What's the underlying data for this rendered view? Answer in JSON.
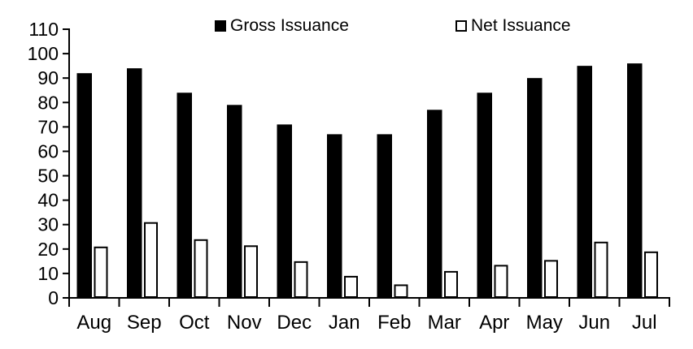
{
  "chart_data": {
    "type": "bar",
    "title": "",
    "categories": [
      "Aug",
      "Sep",
      "Oct",
      "Nov",
      "Dec",
      "Jan",
      "Feb",
      "Mar",
      "Apr",
      "May",
      "Jun",
      "Jul"
    ],
    "series": [
      {
        "name": "Gross Issuance",
        "style": "filled",
        "fill": "#000000",
        "values": [
          92,
          94,
          84,
          79,
          71,
          67,
          67,
          77,
          84,
          90,
          95,
          96
        ]
      },
      {
        "name": "Net Issuance",
        "style": "outlined",
        "fill": "#ffffff",
        "stroke": "#000000",
        "values": [
          21,
          31,
          24,
          21.5,
          15,
          9,
          5.5,
          11,
          13.5,
          15.5,
          23,
          19
        ]
      }
    ],
    "xlabel": "",
    "ylabel": "",
    "ylim": [
      0,
      110
    ],
    "y_ticks": [
      0,
      10,
      20,
      30,
      40,
      50,
      60,
      70,
      80,
      90,
      100,
      110
    ],
    "grid": false,
    "legend_position": "top",
    "axis_color": "#000000",
    "background": "#ffffff"
  }
}
